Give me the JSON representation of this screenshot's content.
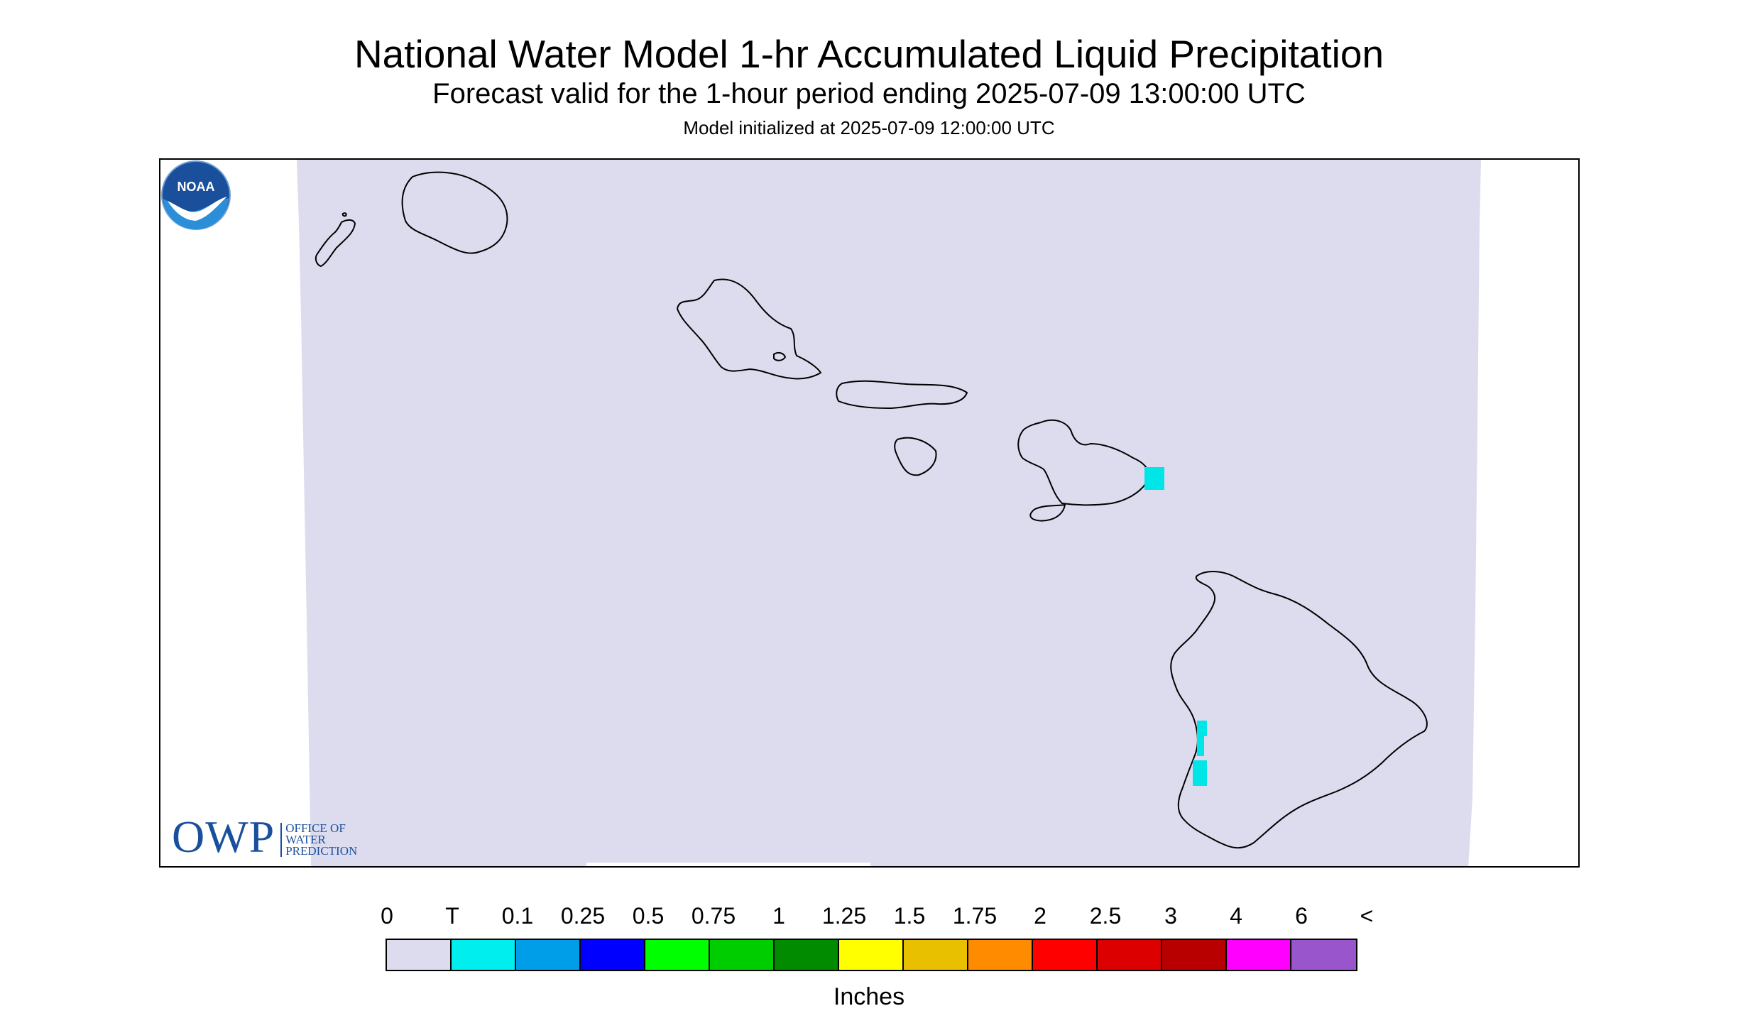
{
  "header": {
    "title": "National Water Model 1-hr Accumulated Liquid Precipitation",
    "subtitle": "Forecast valid for the 1-hour period ending 2025-07-09 13:00:00 UTC",
    "init_line": "Model initialized at 2025-07-09 12:00:00 UTC"
  },
  "map": {
    "region": "Hawaiian Islands",
    "background_color": "#dcdcee",
    "coastline_color": "#000000",
    "islands": [
      "Niihau",
      "Kauai",
      "Oahu",
      "Molokai",
      "Lanai",
      "Maui",
      "Kahoolawe",
      "Hawaii"
    ],
    "precip_cells": [
      {
        "location": "East Maui",
        "category": "T",
        "color": "#00e5e5"
      },
      {
        "location": "Kona coast, Hawaii",
        "category": "T",
        "color": "#00e5e5"
      }
    ]
  },
  "logos": {
    "owp": {
      "mark": "OWP",
      "text_lines": [
        "OFFICE OF",
        "WATER",
        "PREDICTION"
      ],
      "color": "#1a4f9c"
    },
    "noaa": {
      "text": "NOAA",
      "icon": "noaa-logo-icon"
    }
  },
  "legend": {
    "labels": [
      "0",
      "T",
      "0.1",
      "0.25",
      "0.5",
      "0.75",
      "1",
      "1.25",
      "1.5",
      "1.75",
      "2",
      "2.5",
      "3",
      "4",
      "6",
      "<"
    ],
    "colors": [
      "#dcdcee",
      "#00eeee",
      "#009ee8",
      "#0000ff",
      "#00ff00",
      "#00cd00",
      "#008b00",
      "#ffff00",
      "#e8c000",
      "#ff8c00",
      "#ff0000",
      "#dd0000",
      "#b80000",
      "#ff00ff",
      "#9955cc"
    ],
    "units": "Inches"
  }
}
